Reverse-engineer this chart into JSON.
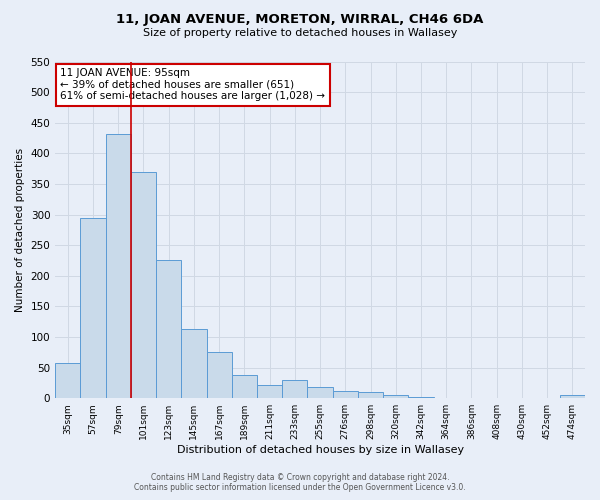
{
  "title": "11, JOAN AVENUE, MORETON, WIRRAL, CH46 6DA",
  "subtitle": "Size of property relative to detached houses in Wallasey",
  "xlabel": "Distribution of detached houses by size in Wallasey",
  "ylabel": "Number of detached properties",
  "bar_labels": [
    "35sqm",
    "57sqm",
    "79sqm",
    "101sqm",
    "123sqm",
    "145sqm",
    "167sqm",
    "189sqm",
    "211sqm",
    "233sqm",
    "255sqm",
    "276sqm",
    "298sqm",
    "320sqm",
    "342sqm",
    "364sqm",
    "386sqm",
    "408sqm",
    "430sqm",
    "452sqm",
    "474sqm"
  ],
  "bar_values": [
    57,
    295,
    432,
    370,
    225,
    113,
    76,
    38,
    21,
    29,
    18,
    11,
    10,
    5,
    2,
    0,
    0,
    0,
    0,
    0,
    5
  ],
  "bar_color": "#c9daea",
  "bar_edge_color": "#5b9bd5",
  "vline_color": "#cc0000",
  "vline_pos": 2.5,
  "ylim": [
    0,
    550
  ],
  "yticks": [
    0,
    50,
    100,
    150,
    200,
    250,
    300,
    350,
    400,
    450,
    500,
    550
  ],
  "annotation_text": "11 JOAN AVENUE: 95sqm\n← 39% of detached houses are smaller (651)\n61% of semi-detached houses are larger (1,028) →",
  "annotation_box_facecolor": "#ffffff",
  "annotation_box_edgecolor": "#cc0000",
  "grid_color": "#d0d8e4",
  "bg_color": "#e8eef8",
  "footer_line1": "Contains HM Land Registry data © Crown copyright and database right 2024.",
  "footer_line2": "Contains public sector information licensed under the Open Government Licence v3.0."
}
